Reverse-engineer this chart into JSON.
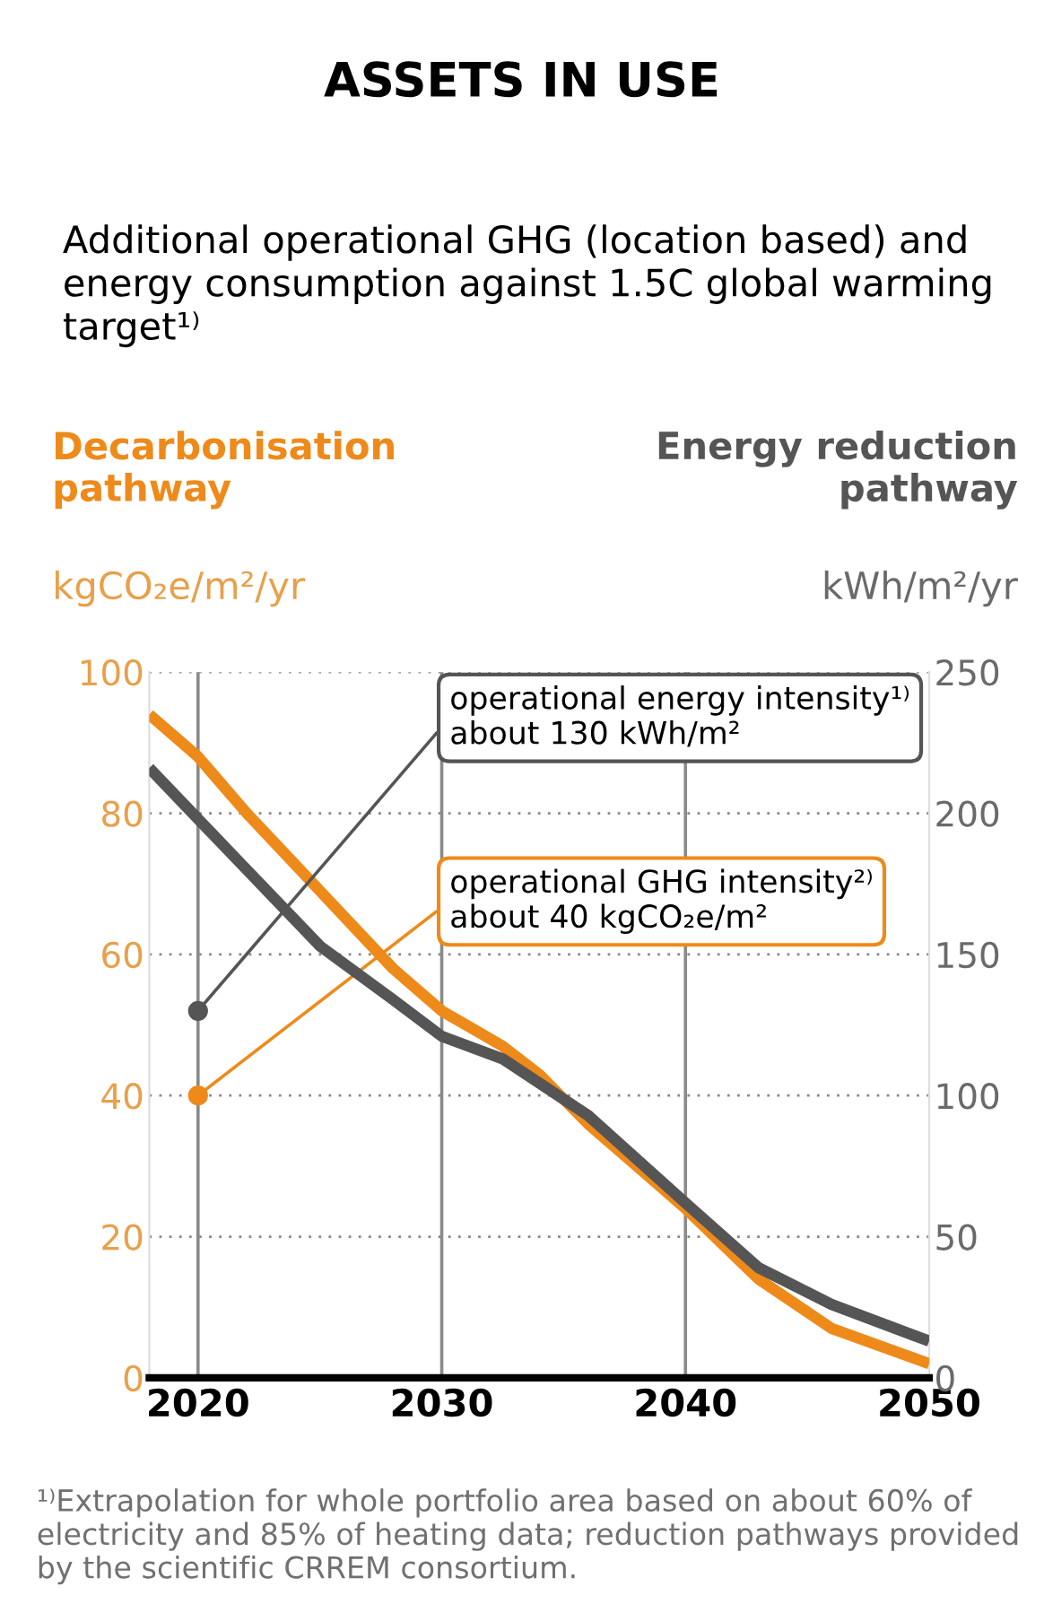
{
  "chart_data": {
    "type": "line",
    "title": "ASSETS IN USE",
    "subtitle": "Additional operational GHG (location based) and energy consumption against 1.5C global warming target¹⁾",
    "ylabel": "kgCO₂e/m²/yr",
    "y2label": "kWh/m²/yr",
    "x": [
      2018,
      2020,
      2022,
      2025,
      2028,
      2030,
      2032.5,
      2034,
      2036,
      2038,
      2040,
      2043,
      2046,
      2050
    ],
    "series": [
      {
        "name": "Decarbonisation pathway",
        "color": "#ee8a1a",
        "values": [
          94,
          88,
          80,
          69,
          58,
          52,
          47,
          43,
          36,
          30,
          24,
          14,
          7,
          2
        ]
      },
      {
        "name": "Energy reduction pathway",
        "color": "#555555",
        "axis": "y2",
        "x": [
          2018,
          2020,
          2022,
          2025,
          2028,
          2030,
          2032.5,
          2036,
          2040,
          2043,
          2046,
          2050
        ],
        "values": [
          216,
          198,
          180,
          153,
          134,
          121,
          113,
          93,
          62,
          39,
          26,
          13
        ]
      }
    ],
    "xlim": [
      2018,
      2050
    ],
    "xticks": [
      2020,
      2030,
      2040,
      2050
    ],
    "ylim": [
      0,
      100
    ],
    "yticks": [
      0,
      20,
      40,
      60,
      80,
      100
    ],
    "y2lim": [
      0,
      250
    ],
    "y2ticks": [
      0,
      50,
      100,
      150,
      200,
      250
    ],
    "ref_lines": [
      {
        "axis": "x",
        "value": 2020,
        "color": "#8a8a8a"
      },
      {
        "axis": "x",
        "value": 2030,
        "color": "#8a8a8a"
      },
      {
        "axis": "x",
        "value": 2040,
        "color": "#8a8a8a"
      }
    ],
    "grid": "y",
    "line_style": "solid",
    "annotations": [
      {
        "text": "operational GHG intensity²⁾\nabout 40 kgCO₂e/m²",
        "x": 2020,
        "y": 40
      },
      {
        "text": "operational energy intensity¹⁾\nabout 130 kWh/m²",
        "x": 2020,
        "y": 52
      },
      "¹⁾Extrapolation for whole portfolio area based on about 60% of electricity and 85% of heating data; reduction pathways provided by the scientific CRREM consortium."
    ]
  }
}
